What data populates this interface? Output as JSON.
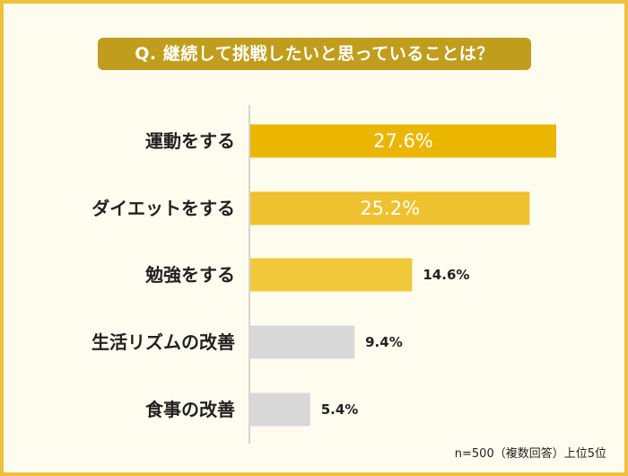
{
  "title": "Q. 継続して挑戦したいと思っていることは？",
  "note": "n=500（複数回答）上位5位",
  "colors": {
    "frame": "#efc13a",
    "background": "#fefcee",
    "title_bg": "#c09d1c",
    "axis": "#c8c8c8",
    "bar_gray": "#d8d8d8"
  },
  "chart_data": {
    "type": "bar",
    "orientation": "horizontal",
    "title": "Q. 継続して挑戦したいと思っていることは？",
    "categories": [
      "運動をする",
      "ダイエットをする",
      "勉強をする",
      "生活リズムの改善",
      "食事の改善"
    ],
    "values": [
      27.6,
      25.2,
      14.6,
      9.4,
      5.4
    ],
    "labels": [
      "27.6%",
      "25.2%",
      "14.6%",
      "9.4%",
      "5.4%"
    ],
    "bar_colors": [
      "#ebb600",
      "#efc12f",
      "#f0c93b",
      "#d8d8d8",
      "#d8d8d8"
    ],
    "label_inside": [
      true,
      true,
      false,
      false,
      false
    ],
    "xlim": [
      0,
      28
    ],
    "unit": "%",
    "grid": false,
    "xlabel": "",
    "ylabel": ""
  }
}
